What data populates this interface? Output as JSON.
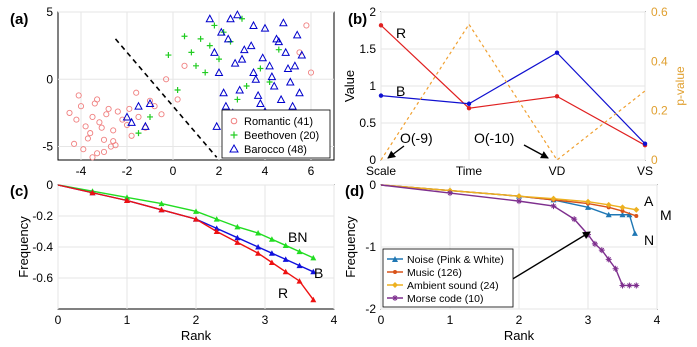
{
  "chart_data": [
    {
      "panel": "(a)",
      "type": "scatter",
      "xlim": [
        -5,
        7
      ],
      "ylim": [
        -6,
        5
      ],
      "xticks": [
        -4,
        -2,
        0,
        2,
        4,
        6
      ],
      "yticks": [
        -5,
        0,
        5
      ],
      "xtick_labels": [
        "-4",
        "-2",
        "0",
        "2",
        "4",
        "6"
      ],
      "ytick_labels": [
        "-5",
        "0",
        "5"
      ],
      "grid": true,
      "legend_position": "bottom-right",
      "series": [
        {
          "name": "Romantic (41)",
          "marker": "circle",
          "color": "#f08080",
          "x": [
            -4.5,
            -4.2,
            -4.0,
            -3.8,
            -3.6,
            -3.5,
            -3.3,
            -3.2,
            -3.0,
            -2.8,
            -2.6,
            -4.3,
            -3.9,
            -3.4,
            -3.1,
            -2.9,
            -2.5,
            -2.2,
            -4.1,
            -3.7,
            -3.3,
            -2.7,
            -2.4,
            -2.0,
            -1.8,
            -1.6,
            -1.5,
            -1.2,
            -1.0,
            -0.8,
            -0.5,
            -3.5,
            -3.0,
            -2.6,
            -1.9,
            -0.3,
            0.2,
            0.5,
            5.5,
            5.8,
            6.0
          ],
          "y": [
            -2.5,
            -3.0,
            -2.0,
            -3.5,
            -4.0,
            -2.8,
            -1.5,
            -3.2,
            -4.5,
            -2.2,
            -3.8,
            -4.8,
            -5.2,
            -1.8,
            -3.6,
            -2.6,
            -4.9,
            -3.0,
            -1.2,
            -4.4,
            -5.5,
            -5.0,
            -2.4,
            -3.4,
            -4.2,
            -1.0,
            -2.8,
            -3.6,
            -1.6,
            -2.0,
            -2.6,
            -5.8,
            -5.4,
            -4.6,
            -2.2,
            0.0,
            -1.5,
            1.0,
            2.0,
            4.0,
            0.5
          ]
        },
        {
          "name": "Beethoven (20)",
          "marker": "plus",
          "color": "#22cc22",
          "x": [
            0.8,
            1.2,
            1.6,
            2.0,
            2.2,
            2.5,
            1.8,
            1.0,
            0.5,
            1.4,
            2.8,
            3.2,
            3.8,
            4.2,
            4.6,
            3.0,
            -0.2,
            0.2,
            -1.5,
            -1.0
          ],
          "y": [
            2.0,
            3.0,
            2.5,
            1.5,
            3.5,
            2.8,
            4.0,
            1.0,
            3.2,
            0.5,
            -1.5,
            -0.5,
            0.8,
            -0.2,
            2.2,
            4.5,
            1.8,
            -0.8,
            -4.0,
            -2.8
          ]
        },
        {
          "name": "Barocco (48)",
          "marker": "triangle",
          "color": "#0000cc",
          "x": [
            1.6,
            1.8,
            2.0,
            2.2,
            2.4,
            2.6,
            2.8,
            3.0,
            3.2,
            3.4,
            3.6,
            3.8,
            4.0,
            4.2,
            4.4,
            4.6,
            4.8,
            5.0,
            5.2,
            5.4,
            5.6,
            1.9,
            2.1,
            2.3,
            2.7,
            2.9,
            3.1,
            3.3,
            3.5,
            3.7,
            3.9,
            4.1,
            4.3,
            4.5,
            4.7,
            4.9,
            5.1,
            5.3,
            5.5,
            2.5,
            3.0,
            3.5,
            -2.0,
            -1.8,
            -1.5,
            -1.2,
            -1.0,
            4.0
          ],
          "y": [
            4.5,
            2.0,
            0.5,
            -1.0,
            3.0,
            -2.5,
            4.8,
            1.5,
            -3.0,
            2.5,
            0.0,
            -1.8,
            3.8,
            1.0,
            -0.5,
            2.8,
            4.2,
            0.8,
            -2.0,
            3.3,
            1.8,
            -3.5,
            3.5,
            -2.0,
            1.2,
            -0.8,
            2.2,
            -2.8,
            4.0,
            -1.2,
            1.6,
            -3.2,
            0.2,
            3.0,
            -1.5,
            2.0,
            -0.2,
            1.0,
            -1.0,
            4.5,
            -3.8,
            0.5,
            -2.8,
            -3.2,
            -2.0,
            -3.5,
            -1.8,
            -2.4
          ]
        }
      ],
      "dashed_boundary": {
        "x": [
          -2.5,
          1.9
        ],
        "y": [
          3.0,
          -5.8
        ]
      }
    },
    {
      "panel": "(b)",
      "type": "line",
      "categories": [
        "Scale",
        "Time",
        "VD",
        "VS"
      ],
      "ylabel": "Value",
      "ylabel_right": "p-value",
      "ylim": [
        0,
        2
      ],
      "yticks": [
        0,
        0.5,
        1,
        1.5,
        2
      ],
      "ytick_labels": [
        "0",
        "0.5",
        "1",
        "1.5",
        "2"
      ],
      "ylim_right": [
        0,
        0.6
      ],
      "yticks_right": [
        0,
        0.2,
        0.4,
        0.6
      ],
      "ytick_labels_right": [
        "0",
        "0.2",
        "0.4",
        "0.6"
      ],
      "grid": true,
      "series": [
        {
          "label": "R",
          "color": "#e02020",
          "axis": "left",
          "values": [
            1.82,
            0.7,
            0.86,
            0.2
          ]
        },
        {
          "label": "B",
          "color": "#1010d0",
          "axis": "left",
          "values": [
            0.87,
            0.76,
            1.45,
            0.22
          ]
        },
        {
          "color": "#f0a030",
          "axis": "right",
          "style": "dotted",
          "values": [
            0.0,
            0.55,
            0.0,
            0.28
          ]
        }
      ],
      "annotations": [
        "O(-9)",
        "O(-10)"
      ]
    },
    {
      "panel": "(c)",
      "type": "line",
      "xlabel": "Rank",
      "ylabel": "Frequency",
      "xlim": [
        0,
        4
      ],
      "ylim": [
        -0.8,
        0
      ],
      "xticks": [
        0,
        1,
        2,
        3,
        4
      ],
      "yticks": [
        -0.6,
        -0.4,
        -0.2,
        0
      ],
      "xtick_labels": [
        "0",
        "1",
        "2",
        "3",
        "4"
      ],
      "ytick_labels": [
        "-0.6",
        "-0.4",
        "-0.2",
        "0"
      ],
      "grid": true,
      "series": [
        {
          "label": "BN",
          "color": "#22dd22",
          "x": [
            0,
            0.5,
            1.0,
            1.5,
            2.0,
            2.3,
            2.6,
            2.9,
            3.1,
            3.3,
            3.5,
            3.7
          ],
          "y": [
            0,
            -0.04,
            -0.08,
            -0.12,
            -0.17,
            -0.22,
            -0.27,
            -0.31,
            -0.35,
            -0.39,
            -0.43,
            -0.47
          ]
        },
        {
          "label": "B",
          "color": "#1010dd",
          "x": [
            0,
            0.5,
            1.0,
            1.5,
            2.0,
            2.3,
            2.6,
            2.9,
            3.1,
            3.3,
            3.5,
            3.7
          ],
          "y": [
            0,
            -0.05,
            -0.1,
            -0.16,
            -0.22,
            -0.28,
            -0.34,
            -0.4,
            -0.44,
            -0.48,
            -0.52,
            -0.56
          ]
        },
        {
          "label": "R",
          "color": "#ee1111",
          "x": [
            0,
            0.5,
            1.0,
            1.5,
            2.0,
            2.3,
            2.6,
            2.9,
            3.1,
            3.3,
            3.5,
            3.7
          ],
          "y": [
            0,
            -0.05,
            -0.1,
            -0.16,
            -0.22,
            -0.3,
            -0.37,
            -0.44,
            -0.5,
            -0.56,
            -0.62,
            -0.74
          ]
        }
      ]
    },
    {
      "panel": "(d)",
      "type": "line",
      "xlabel": "Rank",
      "ylabel": "Frequency",
      "xlim": [
        0,
        4
      ],
      "ylim": [
        -2,
        0
      ],
      "xticks": [
        0,
        1,
        2,
        3,
        4
      ],
      "yticks": [
        -2,
        -1,
        0
      ],
      "xtick_labels": [
        "0",
        "1",
        "2",
        "3",
        "4"
      ],
      "ytick_labels": [
        "-2",
        "-1",
        "0"
      ],
      "grid": true,
      "legend_position": "bottom-left",
      "series": [
        {
          "name": "Noise (Pink & White)",
          "label": "N",
          "color": "#1f77b4",
          "x": [
            0,
            1,
            2,
            2.5,
            3.0,
            3.3,
            3.5,
            3.6,
            3.68
          ],
          "y": [
            0,
            -0.09,
            -0.18,
            -0.24,
            -0.36,
            -0.48,
            -0.48,
            -0.48,
            -0.78
          ]
        },
        {
          "name": "Music (126)",
          "label": "M",
          "color": "#d95319",
          "x": [
            0,
            1,
            2,
            2.5,
            3.0,
            3.3,
            3.5,
            3.7
          ],
          "y": [
            0,
            -0.09,
            -0.18,
            -0.24,
            -0.3,
            -0.36,
            -0.42,
            -0.5
          ]
        },
        {
          "name": "Ambient sound (24)",
          "label": "A",
          "color": "#edb120",
          "x": [
            0,
            1,
            2,
            2.5,
            3.0,
            3.3,
            3.5,
            3.7
          ],
          "y": [
            0,
            -0.09,
            -0.18,
            -0.22,
            -0.27,
            -0.32,
            -0.36,
            -0.4
          ]
        },
        {
          "name": "Morse code (10)",
          "color": "#7e2f8e",
          "x": [
            0,
            1,
            2,
            2.5,
            2.8,
            3.0,
            3.1,
            3.2,
            3.3,
            3.4,
            3.5,
            3.6,
            3.7
          ],
          "y": [
            0,
            -0.13,
            -0.26,
            -0.34,
            -0.55,
            -0.8,
            -0.95,
            -1.05,
            -1.2,
            -1.35,
            -1.62,
            -1.62,
            -1.62
          ]
        }
      ]
    }
  ]
}
